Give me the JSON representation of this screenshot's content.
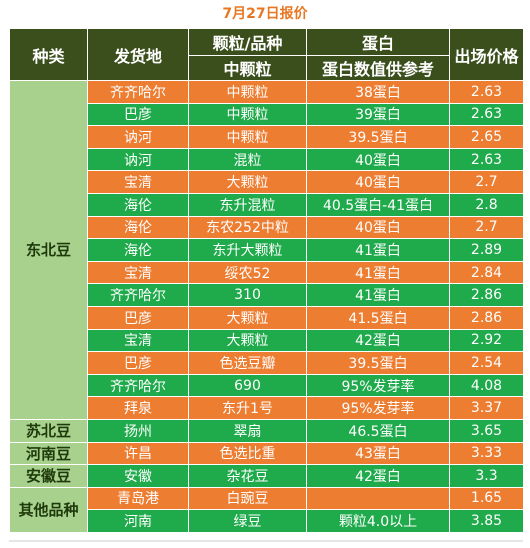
{
  "title": "7月27日报价",
  "header": {
    "category": "种类",
    "origin": "发货地",
    "grain": "颗粒/品种",
    "grain_sub": "中颗粒",
    "protein": "蛋白",
    "protein_sub": "蛋白数值供参考",
    "price": "出场价格"
  },
  "groups": [
    {
      "category": "东北豆",
      "rows": [
        {
          "origin": "齐齐哈尔",
          "grain": "中颗粒",
          "protein": "38蛋白",
          "price": "2.63",
          "color": "orange"
        },
        {
          "origin": "巴彦",
          "grain": "中颗粒",
          "protein": "39蛋白",
          "price": "2.63",
          "color": "green"
        },
        {
          "origin": "讷河",
          "grain": "中颗粒",
          "protein": "39.5蛋白",
          "price": "2.65",
          "color": "orange"
        },
        {
          "origin": "讷河",
          "grain": "混粒",
          "protein": "40蛋白",
          "price": "2.63",
          "color": "green"
        },
        {
          "origin": "宝清",
          "grain": "大颗粒",
          "protein": "40蛋白",
          "price": "2.7",
          "color": "orange"
        },
        {
          "origin": "海伦",
          "grain": "东升混粒",
          "protein": "40.5蛋白-41蛋白",
          "price": "2.8",
          "color": "green"
        },
        {
          "origin": "海伦",
          "grain": "东农252中粒",
          "protein": "40蛋白",
          "price": "2.7",
          "color": "orange"
        },
        {
          "origin": "海伦",
          "grain": "东升大颗粒",
          "protein": "41蛋白",
          "price": "2.89",
          "color": "green"
        },
        {
          "origin": "宝清",
          "grain": "绥农52",
          "protein": "41蛋白",
          "price": "2.84",
          "color": "orange"
        },
        {
          "origin": "齐齐哈尔",
          "grain": "310",
          "protein": "41蛋白",
          "price": "2.86",
          "color": "green"
        },
        {
          "origin": "巴彦",
          "grain": "大颗粒",
          "protein": "41.5蛋白",
          "price": "2.86",
          "color": "orange"
        },
        {
          "origin": "宝清",
          "grain": "大颗粒",
          "protein": "42蛋白",
          "price": "2.92",
          "color": "green"
        },
        {
          "origin": "巴彦",
          "grain": "色选豆瓣",
          "protein": "39.5蛋白",
          "price": "2.54",
          "color": "orange"
        },
        {
          "origin": "齐齐哈尔",
          "grain": "690",
          "protein": "95%发芽率",
          "price": "4.08",
          "color": "green"
        },
        {
          "origin": "拜泉",
          "grain": "东升1号",
          "protein": "95%发芽率",
          "price": "3.37",
          "color": "orange"
        }
      ]
    },
    {
      "category": "苏北豆",
      "rows": [
        {
          "origin": "扬州",
          "grain": "翠扇",
          "protein": "46.5蛋白",
          "price": "3.65",
          "color": "green"
        }
      ]
    },
    {
      "category": "河南豆",
      "rows": [
        {
          "origin": "许昌",
          "grain": "色选比重",
          "protein": "43蛋白",
          "price": "3.33",
          "color": "orange"
        }
      ]
    },
    {
      "category": "安徽豆",
      "rows": [
        {
          "origin": "安徽",
          "grain": "杂花豆",
          "protein": "42蛋白",
          "price": "3.3",
          "color": "green"
        }
      ]
    },
    {
      "category": "其他品种",
      "rows": [
        {
          "origin": "青岛港",
          "grain": "白豌豆",
          "protein": "",
          "price": "1.65",
          "color": "orange"
        },
        {
          "origin": "河南",
          "grain": "绿豆",
          "protein": "颗粒4.0以上",
          "price": "3.85",
          "color": "green"
        }
      ]
    }
  ]
}
